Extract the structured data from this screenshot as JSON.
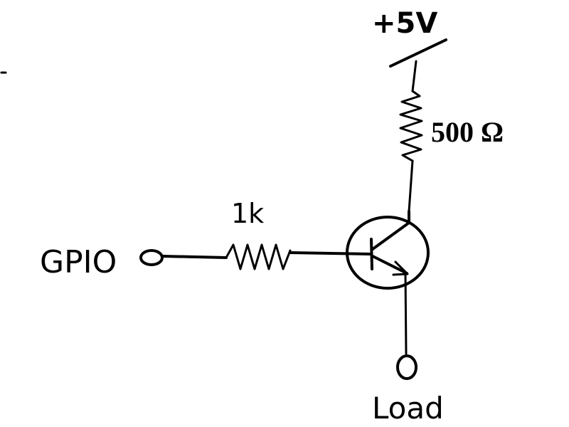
{
  "labels": {
    "supply": "+5V",
    "collector_resistor": "500 Ω",
    "base_resistor": "1k",
    "input": "GPIO",
    "output": "Load"
  }
}
